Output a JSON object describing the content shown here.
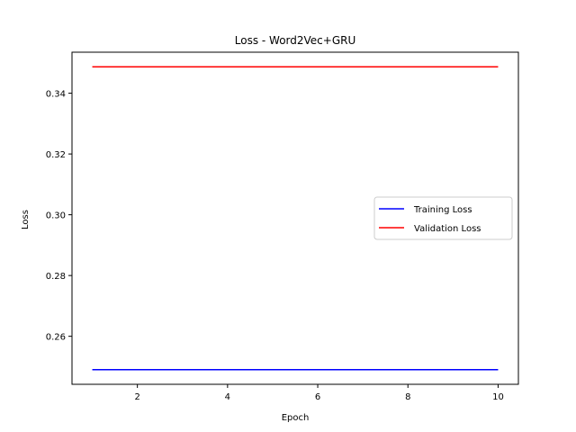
{
  "chart_data": {
    "type": "line",
    "title": "Loss - Word2Vec+GRU",
    "xlabel": "Epoch",
    "ylabel": "Loss",
    "xlim": [
      0.55,
      10.45
    ],
    "ylim": [
      0.2442,
      0.3535
    ],
    "xticks": [
      2,
      4,
      6,
      8,
      10
    ],
    "yticks": [
      0.26,
      0.28,
      0.3,
      0.32,
      0.34
    ],
    "ytick_labels": [
      "0.26",
      "0.28",
      "0.30",
      "0.32",
      "0.34"
    ],
    "xtick_labels": [
      "2",
      "4",
      "6",
      "8",
      "10"
    ],
    "x": [
      1,
      2,
      3,
      4,
      5,
      6,
      7,
      8,
      9,
      10
    ],
    "series": [
      {
        "name": "Training Loss",
        "color": "#0000ff",
        "values": [
          0.249,
          0.249,
          0.249,
          0.249,
          0.249,
          0.249,
          0.249,
          0.249,
          0.249,
          0.249
        ]
      },
      {
        "name": "Validation Loss",
        "color": "#ff0000",
        "values": [
          0.3487,
          0.3487,
          0.3487,
          0.3487,
          0.3487,
          0.3487,
          0.3487,
          0.3487,
          0.3487,
          0.3487
        ]
      }
    ],
    "legend": "center-right",
    "grid": false
  }
}
